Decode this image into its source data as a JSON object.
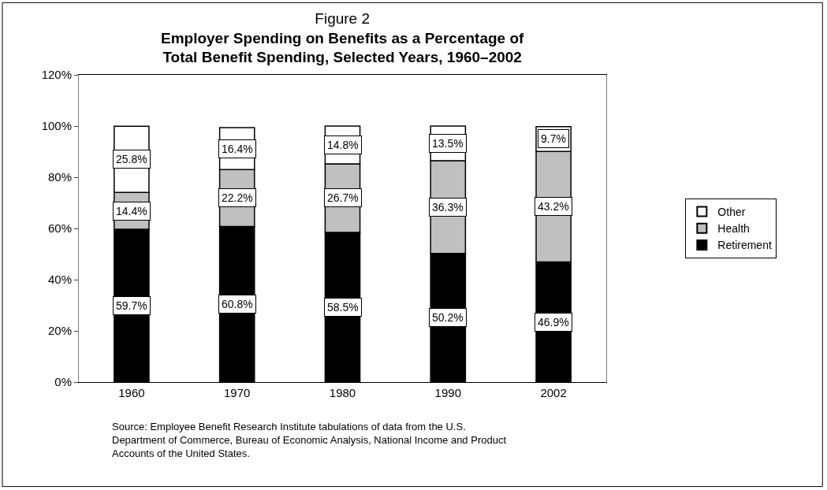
{
  "chart_data": {
    "type": "bar",
    "stacked": true,
    "title": "Figure 2",
    "subtitle": "Employer Spending on Benefits as a Percentage of Total Benefit Spending, Selected Years, 1960–2002",
    "categories": [
      "1960",
      "1970",
      "1980",
      "1990",
      "2002"
    ],
    "series": [
      {
        "name": "Retirement",
        "color": "#000000",
        "values": [
          59.7,
          60.8,
          58.5,
          50.2,
          46.9
        ],
        "value_labels": [
          "59.7%",
          "60.8%",
          "58.5%",
          "50.2%",
          "46.9%"
        ]
      },
      {
        "name": "Health",
        "color": "#c0c0c0",
        "values": [
          14.4,
          22.2,
          26.7,
          36.3,
          43.2
        ],
        "value_labels": [
          "14.4%",
          "22.2%",
          "26.7%",
          "36.3%",
          "43.2%"
        ]
      },
      {
        "name": "Other",
        "color": "#ffffff",
        "values": [
          25.8,
          16.4,
          14.8,
          13.5,
          9.7
        ],
        "value_labels": [
          "25.8%",
          "16.4%",
          "14.8%",
          "13.5%",
          "9.7%"
        ]
      }
    ],
    "ylim": [
      0,
      120
    ],
    "yticks": [
      {
        "value": 0,
        "label": "0%"
      },
      {
        "value": 20,
        "label": "20%"
      },
      {
        "value": 40,
        "label": "40%"
      },
      {
        "value": 60,
        "label": "60%"
      },
      {
        "value": 80,
        "label": "80%"
      },
      {
        "value": 100,
        "label": "100%"
      },
      {
        "value": 120,
        "label": "120%"
      }
    ],
    "legend": "right",
    "annotations": [
      "Source: Employee Benefit Research Institute tabulations of data from the U.S. Department of Commerce, Bureau of Economic Analysis, National Income and Product Accounts of the United States."
    ]
  }
}
